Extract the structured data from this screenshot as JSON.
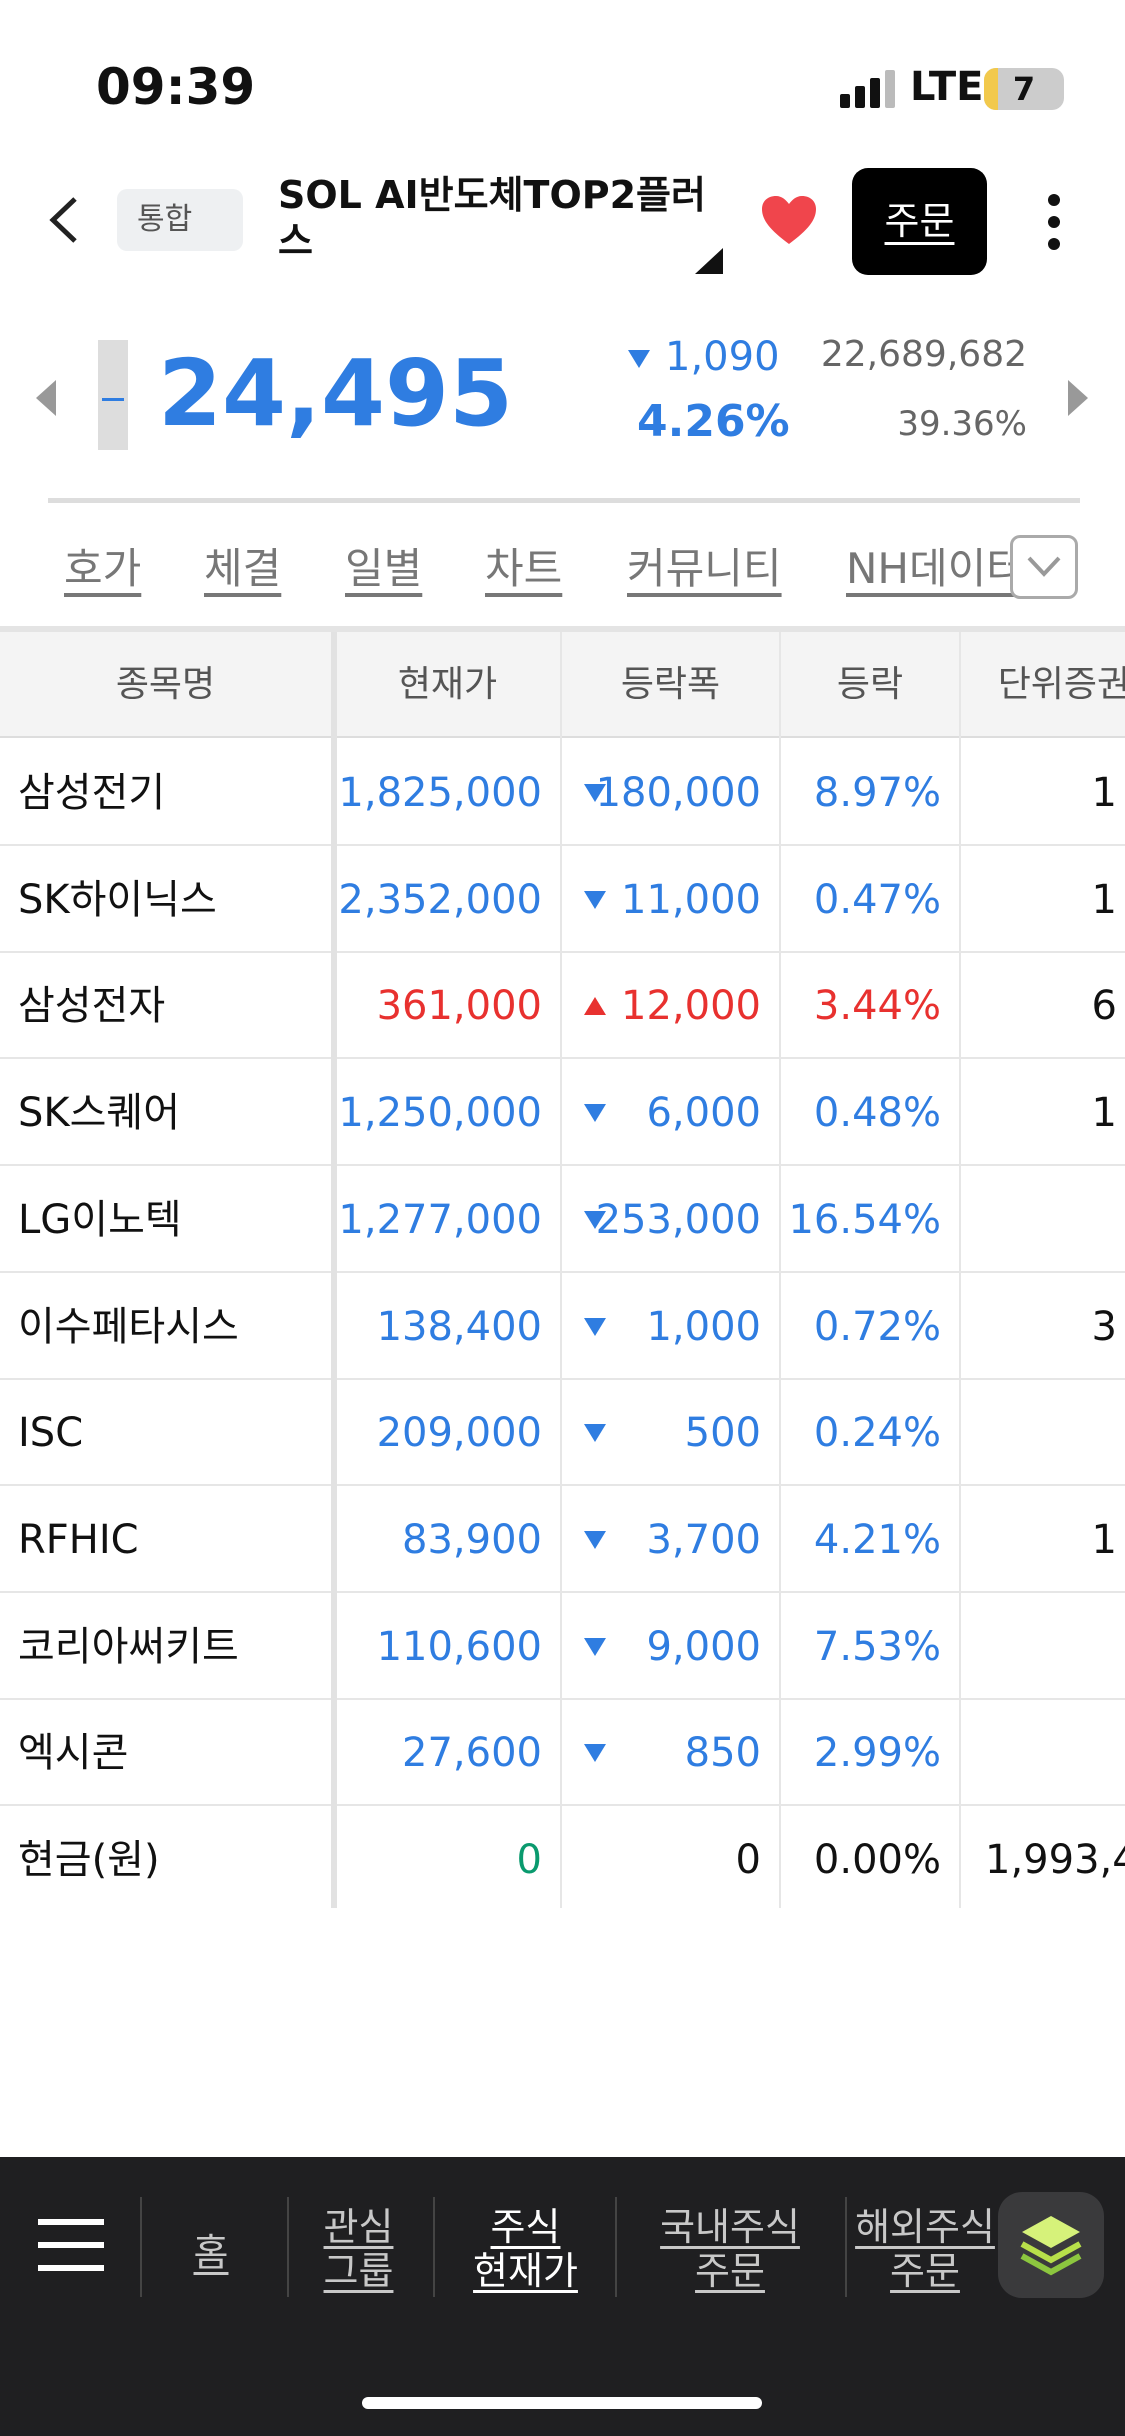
{
  "status": {
    "time": "09:39",
    "network": "LTE",
    "battery": "7"
  },
  "header": {
    "tag": "통합",
    "title_lines": [
      "SOL AI반도체TOP2플러",
      "스"
    ],
    "order_button": "주문"
  },
  "quote": {
    "price": "24,495",
    "change": "1,090",
    "change_rate": "4.26%",
    "volume": "22,689,682",
    "ratio": "39.36%",
    "direction": "down"
  },
  "tabs": [
    "호가",
    "체결",
    "일별",
    "차트",
    "커뮤니티",
    "NH데이터"
  ],
  "table": {
    "columns": [
      "종목명",
      "현재가",
      "등락폭",
      "등락",
      "단위증권수"
    ],
    "rows": [
      [
        "삼성전기",
        "1,825,000",
        "180,000",
        "8.97%",
        "1",
        "down"
      ],
      [
        "SK하이닉스",
        "2,352,000",
        "11,000",
        "0.47%",
        "1",
        "down"
      ],
      [
        "삼성전자",
        "361,000",
        "12,000",
        "3.44%",
        "6",
        "up"
      ],
      [
        "SK스퀘어",
        "1,250,000",
        "6,000",
        "0.48%",
        "1",
        "down"
      ],
      [
        "LG이노텍",
        "1,277,000",
        "253,000",
        "16.54%",
        null,
        "down"
      ],
      [
        "이수페타시스",
        "138,400",
        "1,000",
        "0.72%",
        "3",
        "down"
      ],
      [
        "ISC",
        "209,000",
        "500",
        "0.24%",
        null,
        "down"
      ],
      [
        "RFHIC",
        "83,900",
        "3,700",
        "4.21%",
        "1",
        "down"
      ],
      [
        "코리아써키트",
        "110,600",
        "9,000",
        "7.53%",
        null,
        "down"
      ],
      [
        "엑시콘",
        "27,600",
        "850",
        "2.99%",
        null,
        "down"
      ],
      [
        "현금(원)",
        "0",
        "0",
        "0.00%",
        "1,993,4",
        "cash"
      ]
    ]
  },
  "nav": [
    [
      "홈"
    ],
    [
      "관심",
      "그룹"
    ],
    [
      "주식",
      "현재가"
    ],
    [
      "국내주식",
      "주문"
    ],
    [
      "해외주식",
      "주문"
    ]
  ]
}
